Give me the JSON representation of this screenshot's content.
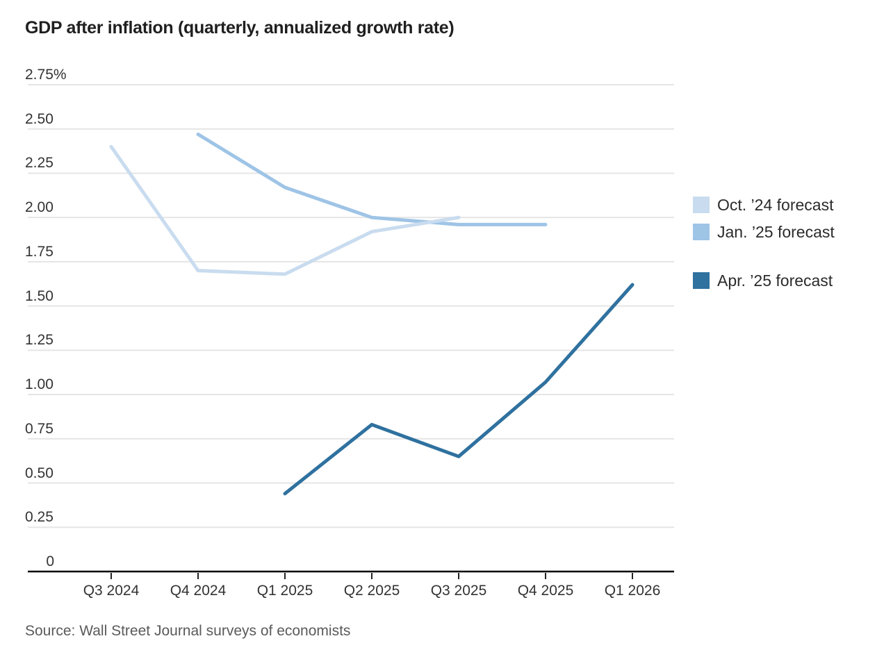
{
  "title": "GDP after inflation (quarterly, annualized growth rate)",
  "source": "Source: Wall Street Journal surveys of economists",
  "chart_data": {
    "type": "line",
    "title": "GDP after inflation (quarterly, annualized growth rate)",
    "xlabel": "",
    "ylabel": "",
    "categories": [
      "Q3 2024",
      "Q4 2024",
      "Q1 2025",
      "Q2 2025",
      "Q3 2025",
      "Q4 2025",
      "Q1 2026"
    ],
    "series": [
      {
        "name": "Oct. ’24 forecast",
        "color": "#c9dcef",
        "values": [
          2.4,
          1.7,
          1.68,
          1.92,
          2.0,
          null,
          null
        ]
      },
      {
        "name": "Jan. ’25 forecast",
        "color": "#9ec4e6",
        "values": [
          null,
          2.47,
          2.17,
          2.0,
          1.96,
          1.96,
          null
        ]
      },
      {
        "name": "Apr. ’25 forecast",
        "color": "#2f719f",
        "values": [
          null,
          null,
          0.44,
          0.83,
          0.65,
          1.07,
          1.62
        ]
      }
    ],
    "ylim": [
      0,
      2.75
    ],
    "yticks": [
      "2.75%",
      "2.50",
      "2.25",
      "2.00",
      "1.75",
      "1.50",
      "1.25",
      "1.00",
      "0.75",
      "0.50",
      "0.25",
      "0"
    ],
    "ytick_values": [
      2.75,
      2.5,
      2.25,
      2.0,
      1.75,
      1.5,
      1.25,
      1.0,
      0.75,
      0.5,
      0.25,
      0
    ],
    "grid": true,
    "legend_position": "right",
    "colors": {
      "gridline": "#e5e5e5",
      "baseline": "#000000",
      "axis_text": "#333333"
    }
  }
}
